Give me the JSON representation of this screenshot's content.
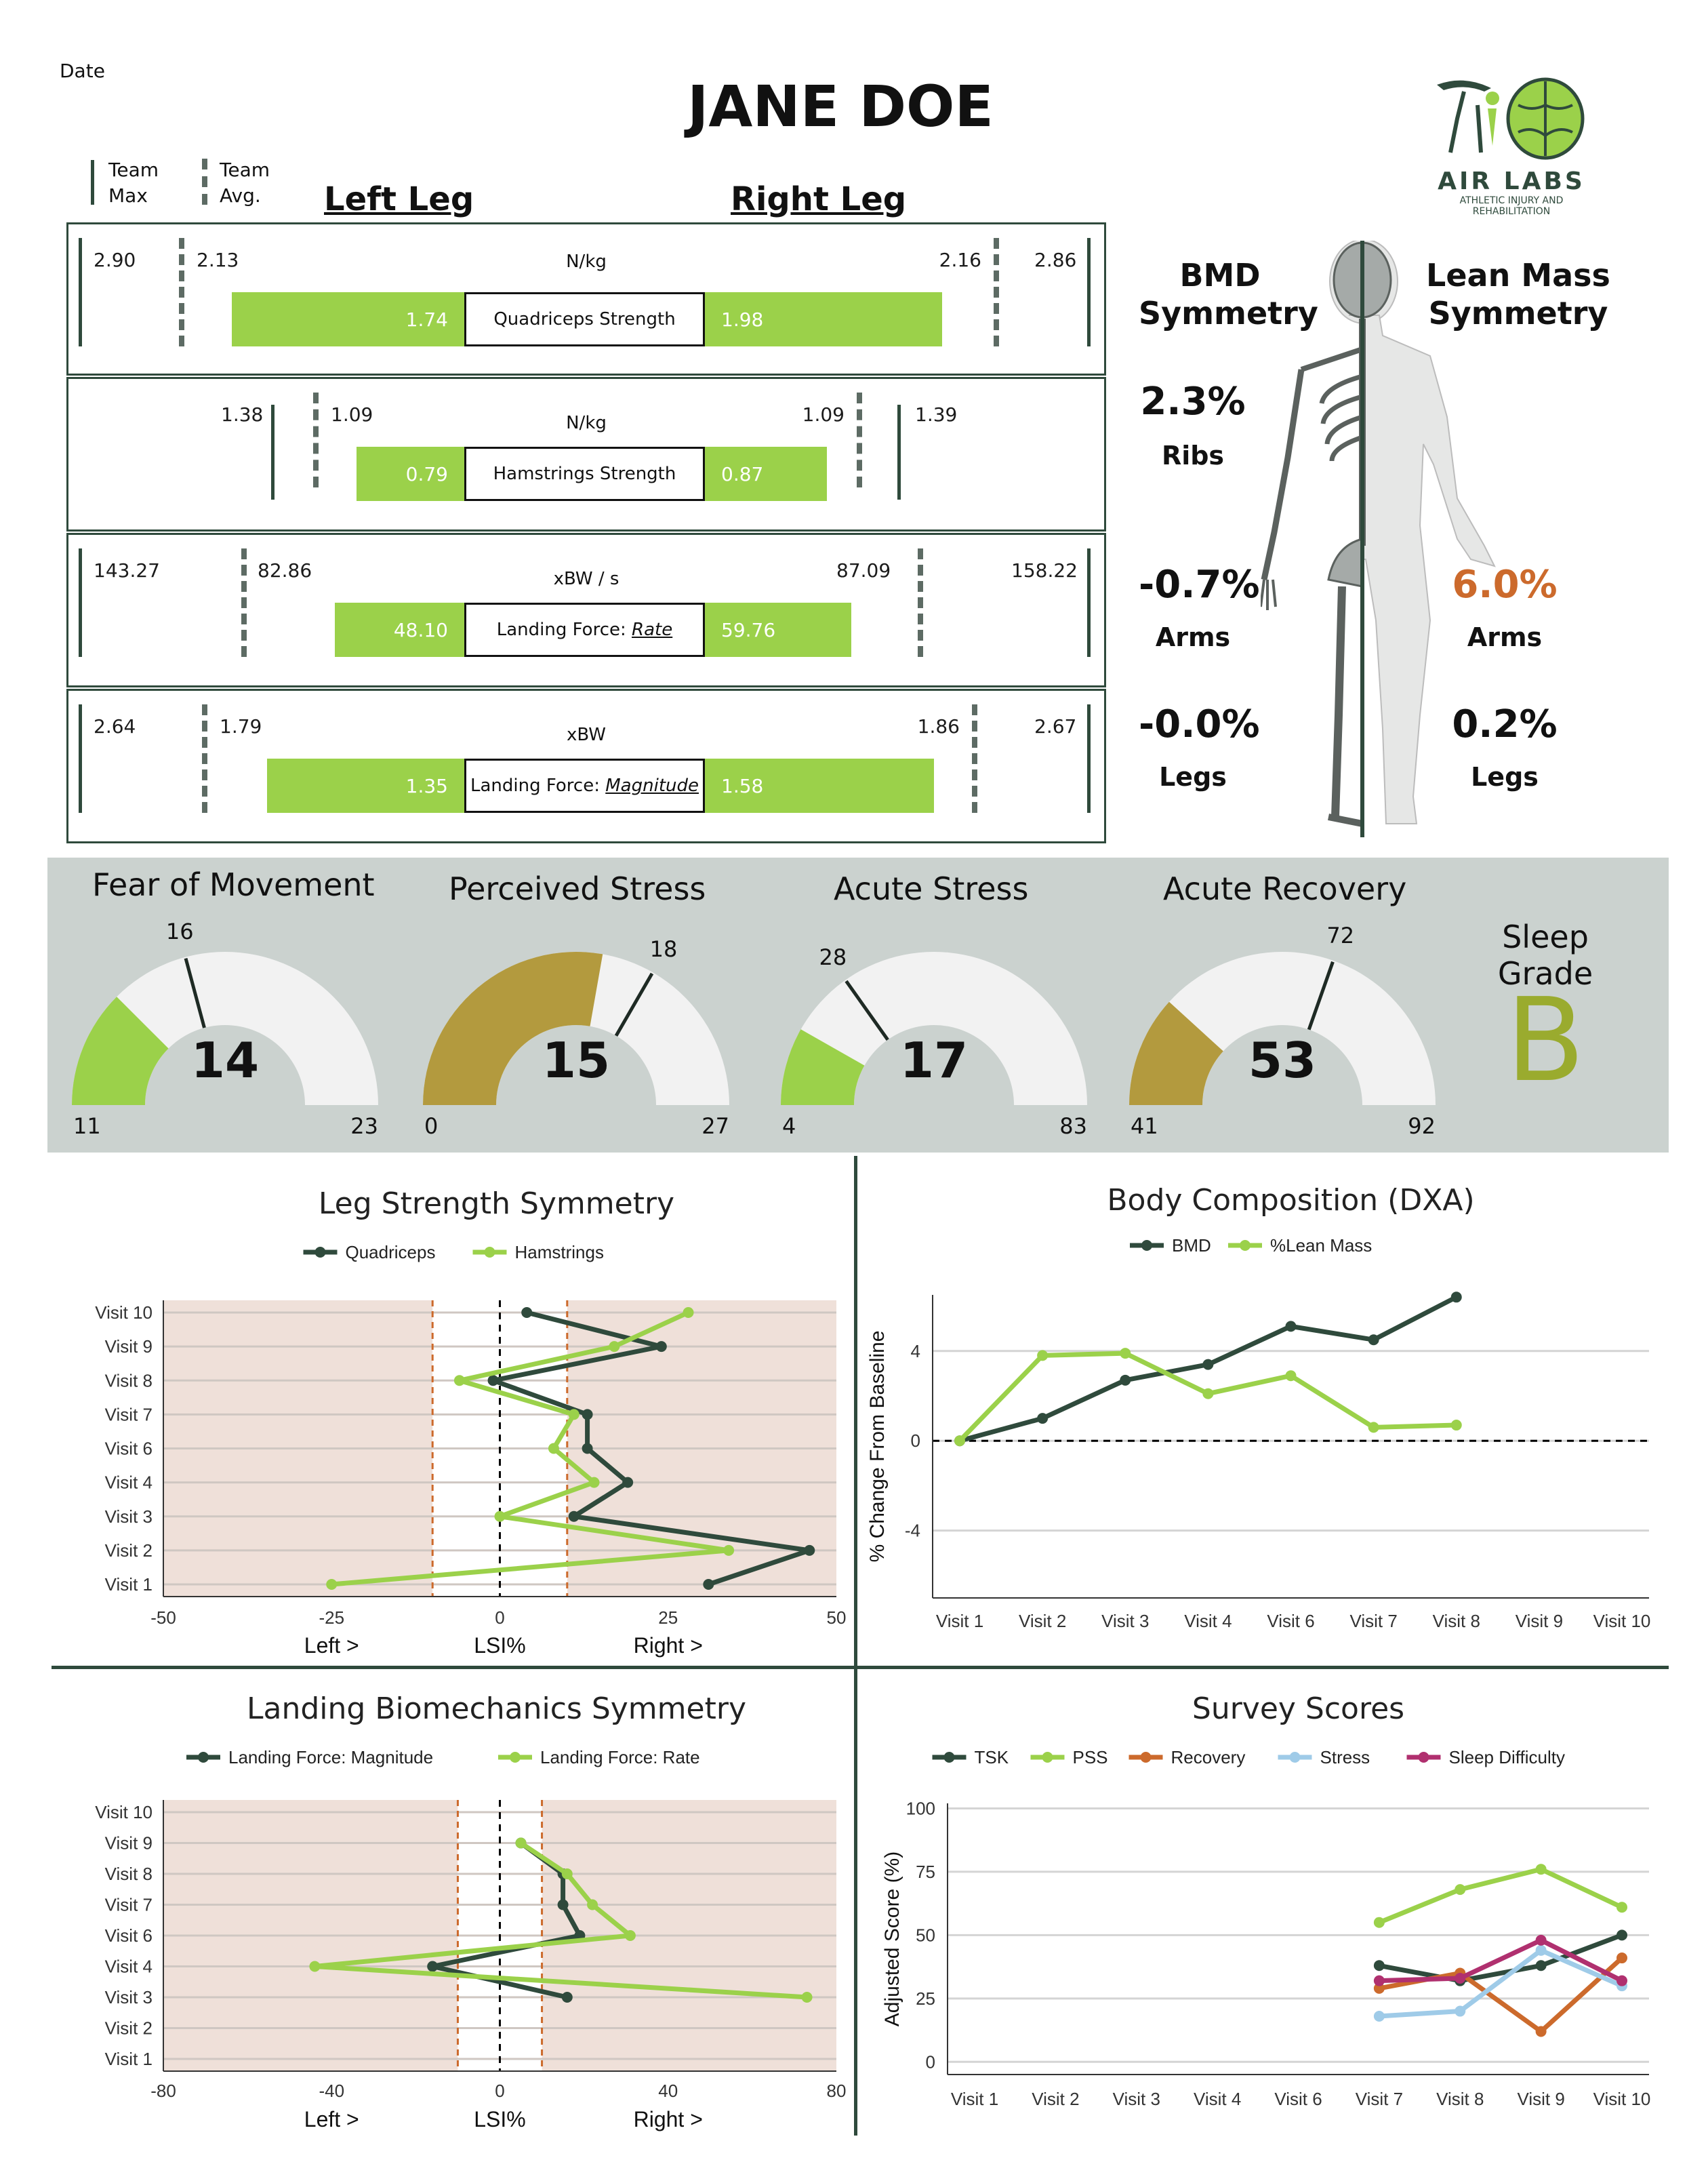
{
  "header": {
    "date_label": "Date",
    "name": "JANE DOE",
    "team_max_label": "Team\nMax",
    "team_avg_label": "Team\nAvg.",
    "left_leg": "Left Leg",
    "right_leg": "Right Leg",
    "logo_text": "AIR LABS",
    "logo_sub": "ATHLETIC INJURY AND REHABILITATION"
  },
  "metrics": [
    {
      "name": "Quadriceps Strength",
      "name_plain": "Quadriceps Strength",
      "name_prefix": "",
      "name_em": "",
      "unit": "N/kg",
      "left_max": "2.90",
      "left_avg": "2.13",
      "left_value": "1.74",
      "right_value": "1.98",
      "right_avg": "2.16",
      "right_max": "2.86"
    },
    {
      "name": "Hamstrings Strength",
      "name_plain": "Hamstrings Strength",
      "name_prefix": "",
      "name_em": "",
      "unit": "N/kg",
      "left_max": "1.38",
      "left_avg": "1.09",
      "left_value": "0.79",
      "right_value": "0.87",
      "right_avg": "1.09",
      "right_max": "1.39"
    },
    {
      "name": "Landing Force: Rate",
      "name_plain": "",
      "name_prefix": "Landing Force: ",
      "name_em": "Rate",
      "unit": "xBW / s",
      "left_max": "143.27",
      "left_avg": "82.86",
      "left_value": "48.10",
      "right_value": "59.76",
      "right_avg": "87.09",
      "right_max": "158.22"
    },
    {
      "name": "Landing Force: Magnitude",
      "name_plain": "",
      "name_prefix": "Landing Force: ",
      "name_em": "Magnitude",
      "unit": "xBW",
      "left_max": "2.64",
      "left_avg": "1.79",
      "left_value": "1.35",
      "right_value": "1.58",
      "right_avg": "1.86",
      "right_max": "2.67"
    }
  ],
  "symmetry": {
    "bmd_title": "BMD\nSymmetry",
    "lean_title": "Lean Mass\nSymmetry",
    "bmd": [
      {
        "value": "2.3%",
        "label": "Ribs"
      },
      {
        "value": "-0.7%",
        "label": "Arms"
      },
      {
        "value": "-0.0%",
        "label": "Legs"
      }
    ],
    "lean": [
      {
        "value": "6.0%",
        "label": "Arms",
        "color": "#cc6a2c"
      },
      {
        "value": "0.2%",
        "label": "Legs",
        "color": "#111111"
      }
    ]
  },
  "gauges": [
    {
      "title": "Fear of Movement",
      "value": "14",
      "min": "11",
      "max": "23",
      "team": "16",
      "value_num": 14,
      "min_num": 11,
      "max_num": 23,
      "team_num": 16,
      "color": "#9bd14a"
    },
    {
      "title": "Perceived Stress",
      "value": "15",
      "min": "0",
      "max": "27",
      "team": "18",
      "value_num": 15,
      "min_num": 0,
      "max_num": 27,
      "team_num": 18,
      "color": "#b39a3e"
    },
    {
      "title": "Acute Stress",
      "value": "17",
      "min": "4",
      "max": "83",
      "team": "28",
      "value_num": 17,
      "min_num": 4,
      "max_num": 83,
      "team_num": 28,
      "color": "#9bd14a"
    },
    {
      "title": "Acute Recovery",
      "value": "53",
      "min": "41",
      "max": "92",
      "team": "72",
      "value_num": 53,
      "min_num": 41,
      "max_num": 92,
      "team_num": 72,
      "color": "#b39a3e"
    }
  ],
  "sleep": {
    "title": "Sleep Grade",
    "grade": "B",
    "color": "#9aab2e"
  },
  "colors": {
    "dark": "#2f4a3c",
    "green": "#9bd14a",
    "panel": "#cbd2cf",
    "shade": "#efe0d9",
    "orange": "#cc6a2c"
  },
  "chart_data": [
    {
      "type": "line",
      "title": "Leg Strength Symmetry",
      "orientation": "horizontal",
      "categories": [
        "Visit 1",
        "Visit 2",
        "Visit 3",
        "Visit 4",
        "Visit 6",
        "Visit 7",
        "Visit 8",
        "Visit 9",
        "Visit 10"
      ],
      "series": [
        {
          "name": "Quadriceps",
          "color": "#2f4a3c",
          "values": [
            31,
            46,
            11,
            19,
            13,
            13,
            -1,
            24,
            4
          ]
        },
        {
          "name": "Hamstrings",
          "color": "#9bd14a",
          "values": [
            -25,
            34,
            0,
            14,
            8,
            11,
            -6,
            17,
            28
          ]
        }
      ],
      "xlim": [
        -50,
        50
      ],
      "xticks": [
        "-50",
        "-25",
        "0",
        "25",
        "50"
      ],
      "xtick_values": [
        -50,
        -25,
        0,
        25,
        50
      ],
      "xlabels": [
        "Left >",
        "LSI%",
        "Right >"
      ],
      "thresholds": [
        -10,
        10
      ]
    },
    {
      "type": "line",
      "title": "Body Composition (DXA)",
      "categories": [
        "Visit 1",
        "Visit 2",
        "Visit 3",
        "Visit 4",
        "Visit 6",
        "Visit 7",
        "Visit 8",
        "Visit 9",
        "Visit 10"
      ],
      "series": [
        {
          "name": "BMD",
          "color": "#2f4a3c",
          "values": [
            0,
            1.0,
            2.7,
            3.4,
            5.1,
            4.5,
            6.4,
            null,
            null
          ]
        },
        {
          "name": "%Lean Mass",
          "color": "#9bd14a",
          "values": [
            0,
            3.8,
            3.9,
            2.1,
            2.9,
            0.6,
            0.7,
            null,
            null
          ]
        }
      ],
      "ylabel": "% Change From Baseline",
      "ylim": [
        -7,
        6.5
      ],
      "yticks": [
        "4",
        "0",
        "-4"
      ],
      "ytick_values": [
        4,
        0,
        -4
      ]
    },
    {
      "type": "line",
      "title": "Landing Biomechanics Symmetry",
      "orientation": "horizontal",
      "categories": [
        "Visit 1",
        "Visit 2",
        "Visit 3",
        "Visit 4",
        "Visit 6",
        "Visit 7",
        "Visit 8",
        "Visit 9",
        "Visit 10"
      ],
      "series": [
        {
          "name": "Landing Force: Magnitude",
          "color": "#2f4a3c",
          "values": [
            null,
            null,
            16,
            -16,
            19,
            15,
            15,
            5,
            null
          ]
        },
        {
          "name": "Landing Force: Rate",
          "color": "#9bd14a",
          "values": [
            null,
            null,
            73,
            -44,
            31,
            22,
            16,
            5,
            null
          ]
        }
      ],
      "xlim": [
        -80,
        80
      ],
      "xticks": [
        "-80",
        "-40",
        "0",
        "40",
        "80"
      ],
      "xtick_values": [
        -80,
        -40,
        0,
        40,
        80
      ],
      "xlabels": [
        "Left >",
        "LSI%",
        "Right >"
      ],
      "thresholds": [
        -10,
        10
      ]
    },
    {
      "type": "line",
      "title": "Survey Scores",
      "categories": [
        "Visit 1",
        "Visit 2",
        "Visit 3",
        "Visit 4",
        "Visit 6",
        "Visit 7",
        "Visit 8",
        "Visit 9",
        "Visit 10"
      ],
      "series": [
        {
          "name": "TSK",
          "color": "#2f4a3c",
          "values": [
            null,
            null,
            null,
            null,
            null,
            38,
            32,
            38,
            50
          ]
        },
        {
          "name": "PSS",
          "color": "#9bd14a",
          "values": [
            null,
            null,
            null,
            null,
            null,
            55,
            68,
            76,
            61
          ]
        },
        {
          "name": "Recovery",
          "color": "#cc6a2c",
          "values": [
            null,
            null,
            null,
            null,
            null,
            29,
            35,
            12,
            41
          ]
        },
        {
          "name": "Stress",
          "color": "#9fcbe8",
          "values": [
            null,
            null,
            null,
            null,
            null,
            18,
            20,
            44,
            30
          ]
        },
        {
          "name": "Sleep Difficulty",
          "color": "#b0306f",
          "values": [
            null,
            null,
            null,
            null,
            null,
            32,
            33,
            48,
            32
          ]
        }
      ],
      "ylabel": "Adjusted Score (%)",
      "ylim": [
        -5,
        102
      ],
      "yticks": [
        "100",
        "75",
        "50",
        "25",
        "0"
      ],
      "ytick_values": [
        100,
        75,
        50,
        25,
        0
      ]
    }
  ]
}
